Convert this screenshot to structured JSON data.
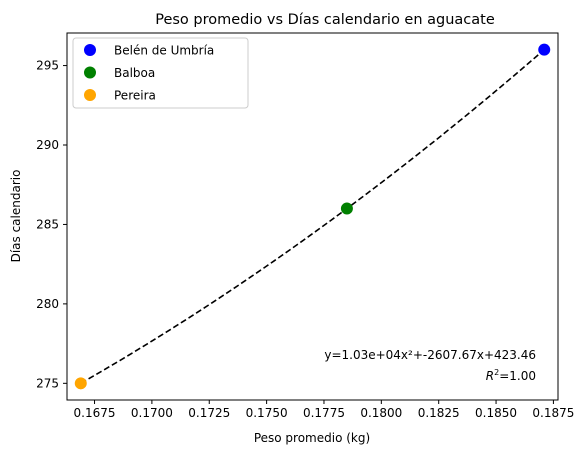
{
  "chart_data": {
    "type": "scatter",
    "title": "Peso promedio vs Días calendario en aguacate",
    "xlabel": "Peso promedio (kg)",
    "ylabel": "Días calendario",
    "xlim": [
      0.1663,
      0.1877
    ],
    "ylim": [
      273.95,
      297.05
    ],
    "x_ticks": [
      "0.1675",
      "0.1700",
      "0.1725",
      "0.1750",
      "0.1775",
      "0.1800",
      "0.1825",
      "0.1850",
      "0.1875"
    ],
    "x_tick_values": [
      0.1675,
      0.17,
      0.1725,
      0.175,
      0.1775,
      0.18,
      0.1825,
      0.185,
      0.1875
    ],
    "y_ticks": [
      "275",
      "280",
      "285",
      "290",
      "295"
    ],
    "y_tick_values": [
      275,
      280,
      285,
      290,
      295
    ],
    "series": [
      {
        "name": "Belén de Umbría",
        "color": "#0000ff",
        "x": [
          0.1871
        ],
        "y": [
          296
        ]
      },
      {
        "name": "Balboa",
        "color": "#008000",
        "x": [
          0.1785
        ],
        "y": [
          286
        ]
      },
      {
        "name": "Pereira",
        "color": "#ffa500",
        "x": [
          0.1669
        ],
        "y": [
          275
        ]
      }
    ],
    "fit": {
      "style": "dashed",
      "color": "#000000",
      "coefficients": [
        10300,
        -2607.67,
        423.46
      ],
      "x_range": [
        0.1669,
        0.1871
      ]
    },
    "annotations": {
      "equation": "y=1.03e+04x²+-2607.67x+423.46",
      "r2_value": "=1.00"
    },
    "legend": "top-left",
    "grid": false
  }
}
